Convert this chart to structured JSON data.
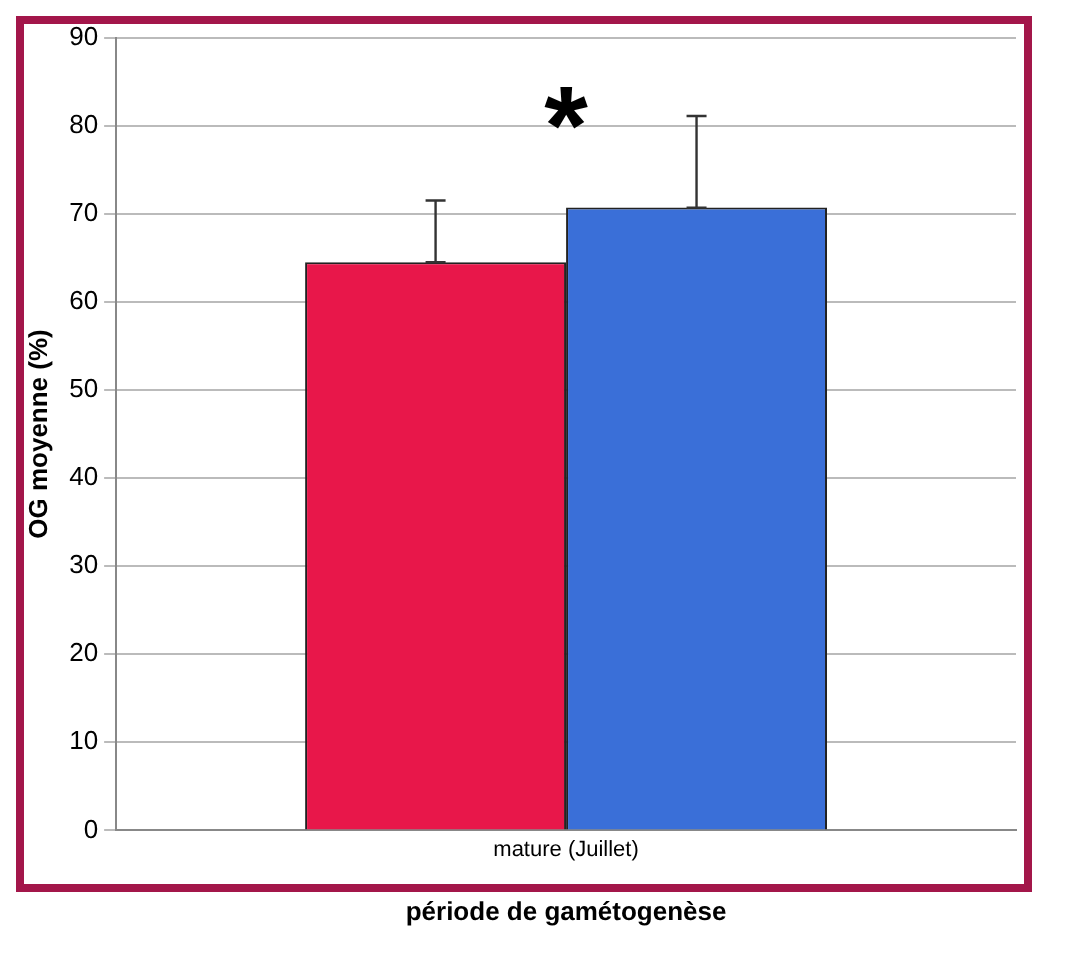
{
  "chart_data": {
    "type": "bar",
    "categories": [
      "mature (Juillet)"
    ],
    "series": [
      {
        "color": "#e8174a",
        "values": [
          64.5
        ],
        "errors": [
          [
            64.5,
            71.5
          ]
        ]
      },
      {
        "color": "#3a6fd8",
        "values": [
          70.7
        ],
        "errors": [
          [
            70.7,
            81.1
          ]
        ]
      }
    ],
    "xlabel": "période de gamétogenèse",
    "ylabel": "OG moyenne (%)",
    "annotations": [
      "*"
    ],
    "ylim": [
      0,
      90
    ],
    "yticks": [
      0,
      10,
      20,
      30,
      40,
      50,
      60,
      70,
      80,
      90
    ],
    "grid": "y",
    "legend": false
  }
}
